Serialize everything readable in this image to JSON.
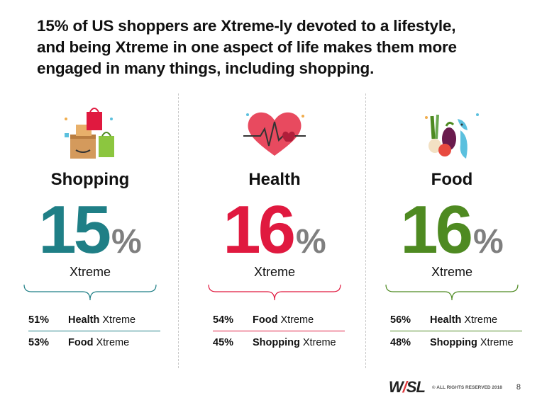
{
  "title": {
    "line1": "15% of US shoppers are Xtreme-ly devoted to a lifestyle,",
    "line2": "and being Xtreme in one aspect of life makes them more",
    "line3": "engaged in many things, including shopping."
  },
  "columns": [
    {
      "heading": "Shopping",
      "big_value": "15",
      "big_pct": "%",
      "sub_label": "Xtreme",
      "accent": "#1f7f86",
      "stats": [
        {
          "pct": "51%",
          "bold": "Health",
          "rest": " Xtreme"
        },
        {
          "pct": "53%",
          "bold": "Food",
          "rest": " Xtreme"
        }
      ]
    },
    {
      "heading": "Health",
      "big_value": "16",
      "big_pct": "%",
      "sub_label": "Xtreme",
      "accent": "#e0193f",
      "stats": [
        {
          "pct": "54%",
          "bold": "Food",
          "rest": " Xtreme"
        },
        {
          "pct": "45%",
          "bold": "Shopping",
          "rest": " Xtreme"
        }
      ]
    },
    {
      "heading": "Food",
      "big_value": "16",
      "big_pct": "%",
      "sub_label": "Xtreme",
      "accent": "#4e8a21",
      "stats": [
        {
          "pct": "56%",
          "bold": "Health",
          "rest": " Xtreme"
        },
        {
          "pct": "48%",
          "bold": "Shopping",
          "rest": " Xtreme"
        }
      ]
    }
  ],
  "icons": [
    "shopping-bags-icon",
    "heart-rate-icon",
    "food-vegetables-fish-icon"
  ],
  "footer": {
    "logo_w": "W",
    "logo_slash": "/",
    "logo_sl": "SL",
    "rights": "© ALL RIGHTS RESERVED 2018",
    "page": "8"
  }
}
